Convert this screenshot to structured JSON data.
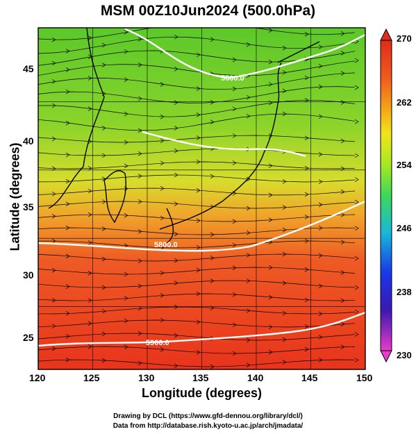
{
  "title": "MSM 00Z10Jun2024 (500.0hPa)",
  "xlabel": "Longitude (degrees)",
  "ylabel": "Latitude  (degrees)",
  "credits": [
    "Drawing by DCL (https://www.gfd-dennou.org/library/dcl/)",
    "Data from http://database.rish.kyoto-u.ac.jp/arch/jmadata/"
  ],
  "x_ticks": [
    "120",
    "125",
    "130",
    "135",
    "140",
    "145",
    "150"
  ],
  "y_ticks": [
    "25",
    "30",
    "35",
    "40",
    "45"
  ],
  "colorbar": {
    "ticks": [
      "270",
      "262",
      "254",
      "246",
      "238",
      "230"
    ],
    "min": 230,
    "max": 270,
    "colors": [
      "#e83cc9",
      "#3c18b0",
      "#1838e8",
      "#19b8d8",
      "#3cd85c",
      "#a8e820",
      "#f2e41c",
      "#f4a418",
      "#f05a1c",
      "#e02c1a"
    ]
  },
  "contour_labels": [
    "5600.0",
    "5800.0",
    "5900.0"
  ],
  "chart_data": {
    "type": "map",
    "variable_range": [
      230,
      270
    ],
    "x_range": [
      120,
      150
    ],
    "y_range": [
      22.5,
      47.5
    ],
    "contours": [
      {
        "label": "5600.0",
        "value": 5600,
        "lat_approx": 45.5
      },
      {
        "label": "5800.0",
        "value": 5800,
        "lat_approx": 32.0
      },
      {
        "label": "5900.0",
        "value": 5900,
        "lat_approx": 24.5
      }
    ]
  }
}
